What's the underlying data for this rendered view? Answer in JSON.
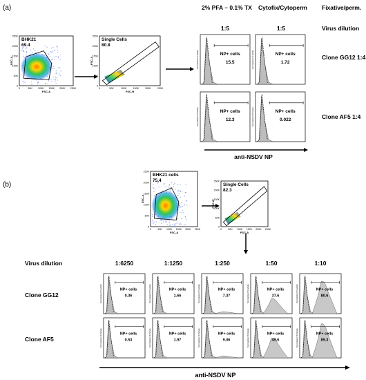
{
  "panel_a": {
    "label": "(a)",
    "col_headers": [
      "2% PFA – 0.1% TX",
      "Cytofix/Cytoperm",
      "Fixative/perm."
    ],
    "dilution_header": "Virus dilution",
    "dilutions": [
      "1:5",
      "1:5"
    ],
    "row_labels": [
      "Clone GG12 1:4",
      "Clone AF5 1:4"
    ],
    "gate1": {
      "name": "BHK21",
      "value": "69.4",
      "xlabel": "FSC-A",
      "ylabel": "SSC-A"
    },
    "gate2": {
      "name": "Single Cells",
      "value": "80.8",
      "xlabel": "FSC-H",
      "ylabel": "FSC-A"
    },
    "np_label": "NP+ cells",
    "values": [
      [
        "15.5",
        "1.72"
      ],
      [
        "12.3",
        "0.022"
      ]
    ],
    "hist_ylabel": "Normalized To Mode",
    "xaxis_label": "anti-NSDV NP"
  },
  "panel_b": {
    "label": "(b)",
    "gate1": {
      "name": "BHK21 cells",
      "value": "75.4",
      "xlabel": "FSC-A",
      "ylabel": "SSC-A"
    },
    "gate2": {
      "name": "Single Cells",
      "value": "82.3",
      "xlabel": "FSC-A",
      "ylabel": "FSC-W"
    },
    "dilution_header": "Virus dilution",
    "dilutions": [
      "1:6250",
      "1:1250",
      "1:250",
      "1:50",
      "1:10"
    ],
    "row_labels": [
      "Clone GG12",
      "Clone AF5"
    ],
    "np_label": "NP+ cells",
    "values": [
      [
        "0.36",
        "1.66",
        "7.37",
        "37.6",
        "80.6"
      ],
      [
        "0.53",
        "1.97",
        "9.06",
        "49.6",
        "89.3"
      ]
    ],
    "hist_ylabel": "Normalized To Mode",
    "xaxis_label": "anti-NSDV NP"
  },
  "ticks": {
    "dot_y": [
      "0",
      "50K",
      "100K",
      "150K",
      "200K",
      "250K"
    ],
    "dot_x": [
      "0",
      "50K",
      "100K",
      "150K",
      "200K",
      "250K"
    ]
  }
}
